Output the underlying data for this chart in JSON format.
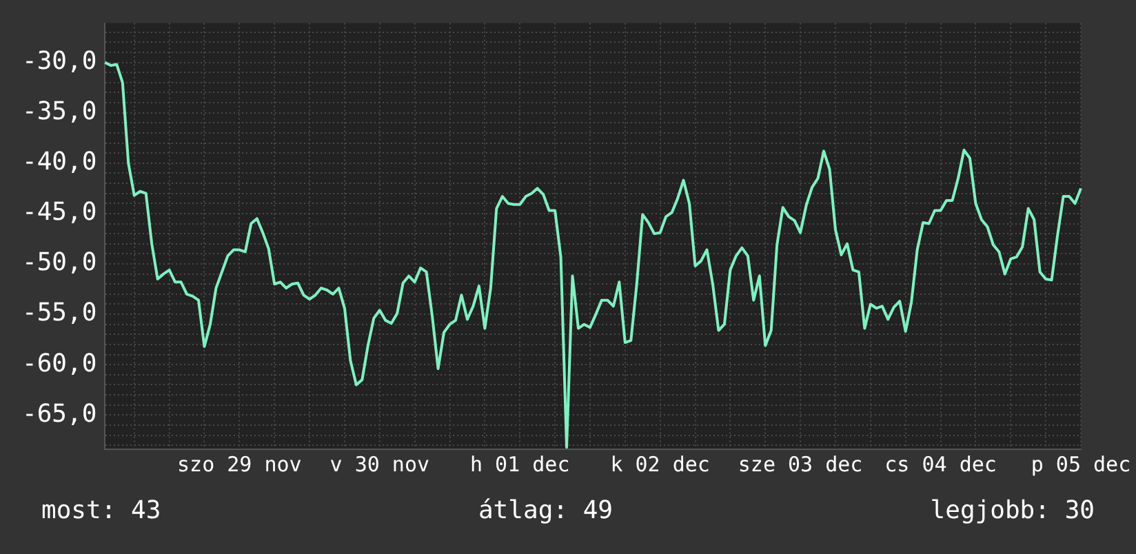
{
  "chart_data": {
    "type": "line",
    "annotations": [
      "most: 43",
      "átlag: 49",
      "legjobb: 30"
    ],
    "categories": [
      null,
      null,
      null,
      null,
      null,
      null,
      null,
      null,
      null,
      null,
      null,
      null,
      null,
      null,
      null,
      null,
      null,
      null,
      null,
      null,
      null,
      null,
      null,
      "szo 29 nov",
      null,
      null,
      null,
      null,
      null,
      null,
      null,
      null,
      null,
      null,
      null,
      null,
      null,
      null,
      null,
      null,
      null,
      null,
      null,
      null,
      null,
      null,
      null,
      "v 30 nov",
      null,
      null,
      null,
      null,
      null,
      null,
      null,
      null,
      null,
      null,
      null,
      null,
      null,
      null,
      null,
      null,
      null,
      null,
      null,
      null,
      null,
      null,
      null,
      "h 01 dec",
      null,
      null,
      null,
      null,
      null,
      null,
      null,
      null,
      null,
      null,
      null,
      null,
      null,
      null,
      null,
      null,
      null,
      null,
      null,
      null,
      null,
      null,
      null,
      "k 02 dec",
      null,
      null,
      null,
      null,
      null,
      null,
      null,
      null,
      null,
      null,
      null,
      null,
      null,
      null,
      null,
      null,
      null,
      null,
      null,
      null,
      null,
      null,
      null,
      "sze 03 dec",
      null,
      null,
      null,
      null,
      null,
      null,
      null,
      null,
      null,
      null,
      null,
      null,
      null,
      null,
      null,
      null,
      null,
      null,
      null,
      null,
      null,
      null,
      null,
      "cs 04 dec",
      null,
      null,
      null,
      null,
      null,
      null,
      null,
      null,
      null,
      null,
      null,
      null,
      null,
      null,
      null,
      null,
      null,
      null,
      null,
      null,
      null,
      null,
      null,
      "p 05 dec"
    ],
    "series": [
      {
        "color": "#80f0c0",
        "values": [
          -30,
          -30.3,
          -30.2,
          -32,
          -40,
          -43.2,
          -42.8,
          -43,
          -48,
          -51.5,
          -51,
          -50.6,
          -51.8,
          -51.8,
          -53,
          -53.2,
          -53.6,
          -58.2,
          -56,
          -52.4,
          -50.8,
          -49.2,
          -48.6,
          -48.6,
          -48.8,
          -46,
          -45.5,
          -46.9,
          -48.5,
          -52,
          -51.8,
          -52.4,
          -52,
          -51.9,
          -53.1,
          -53.5,
          -53.1,
          -52.4,
          -52.6,
          -53,
          -52.4,
          -54.4,
          -59.6,
          -62,
          -61.5,
          -58.1,
          -55.4,
          -54.6,
          -55.6,
          -55.9,
          -54.9,
          -51.9,
          -51.2,
          -51.8,
          -50.4,
          -50.8,
          -55.2,
          -60.4,
          -56.8,
          -56,
          -55.6,
          -53.1,
          -55.5,
          -54.2,
          -52.2,
          -56.4,
          -52.4,
          -44.5,
          -43.3,
          -44,
          -44.1,
          -44.1,
          -43.3,
          -43,
          -42.5,
          -43.1,
          -44.7,
          -44.7,
          -49.3,
          -68.2,
          -51.2,
          -56.4,
          -56,
          -56.3,
          -55,
          -53.6,
          -53.6,
          -54.2,
          -51.8,
          -57.8,
          -57.6,
          -52,
          -45.1,
          -45.9,
          -47,
          -46.9,
          -45.3,
          -44.9,
          -43.5,
          -41.7,
          -44,
          -50.2,
          -49.7,
          -48.6,
          -52,
          -56.6,
          -56,
          -50.6,
          -49.2,
          -48.4,
          -49.2,
          -53.6,
          -51.2,
          -58.1,
          -56.6,
          -48.1,
          -44.4,
          -45.3,
          -45.7,
          -46.9,
          -44.2,
          -42.4,
          -41.5,
          -38.8,
          -40.6,
          -46.6,
          -49.1,
          -48,
          -50.6,
          -50.8,
          -56.4,
          -54,
          -54.4,
          -54.2,
          -55.5,
          -54.3,
          -53.7,
          -56.7,
          -53.8,
          -48.6,
          -45.9,
          -46,
          -44.7,
          -44.7,
          -43.7,
          -43.7,
          -41.5,
          -38.7,
          -39.5,
          -44,
          -45.6,
          -46.3,
          -48.1,
          -48.8,
          -51,
          -49.5,
          -49.3,
          -48.3,
          -44.5,
          -45.6,
          -50.8,
          -51.5,
          -51.6,
          -47.2,
          -43.3,
          -43.3,
          -44,
          -42.5
        ]
      }
    ],
    "ylim": [
      -68.4,
      -26.1
    ],
    "yticks": [
      {
        "value": -68,
        "label": null
      },
      {
        "value": -67,
        "label": null
      },
      {
        "value": -66,
        "label": null
      },
      {
        "value": -65,
        "label": "-65,0"
      },
      {
        "value": -64,
        "label": null
      },
      {
        "value": -63,
        "label": null
      },
      {
        "value": -62,
        "label": null
      },
      {
        "value": -61,
        "label": null
      },
      {
        "value": -60,
        "label": "-60,0"
      },
      {
        "value": -59,
        "label": null
      },
      {
        "value": -58,
        "label": null
      },
      {
        "value": -57,
        "label": null
      },
      {
        "value": -56,
        "label": null
      },
      {
        "value": -55,
        "label": "-55,0"
      },
      {
        "value": -54,
        "label": null
      },
      {
        "value": -53,
        "label": null
      },
      {
        "value": -52,
        "label": null
      },
      {
        "value": -51,
        "label": null
      },
      {
        "value": -50,
        "label": "-50,0"
      },
      {
        "value": -49,
        "label": null
      },
      {
        "value": -48,
        "label": null
      },
      {
        "value": -47,
        "label": null
      },
      {
        "value": -46,
        "label": null
      },
      {
        "value": -45,
        "label": "-45,0"
      },
      {
        "value": -44,
        "label": null
      },
      {
        "value": -43,
        "label": null
      },
      {
        "value": -42,
        "label": null
      },
      {
        "value": -41,
        "label": null
      },
      {
        "value": -40,
        "label": "-40,0"
      },
      {
        "value": -39,
        "label": null
      },
      {
        "value": -38,
        "label": null
      },
      {
        "value": -37,
        "label": null
      },
      {
        "value": -36,
        "label": null
      },
      {
        "value": -35,
        "label": "-35,0"
      },
      {
        "value": -34,
        "label": null
      },
      {
        "value": -33,
        "label": null
      },
      {
        "value": -32,
        "label": null
      },
      {
        "value": -31,
        "label": null
      },
      {
        "value": -30,
        "label": "-30,0"
      },
      {
        "value": -29,
        "label": null
      },
      {
        "value": -28,
        "label": null
      },
      {
        "value": -27,
        "label": null
      }
    ],
    "grid": true,
    "legend": false,
    "marker": "none",
    "line_style": "solid"
  }
}
